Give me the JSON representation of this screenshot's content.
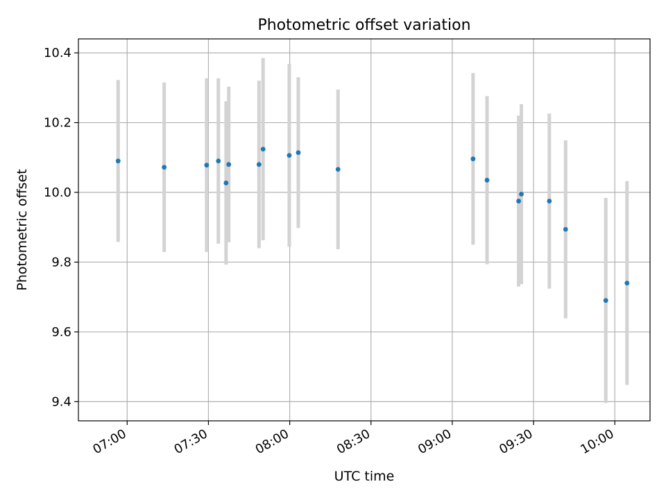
{
  "chart_data": {
    "type": "scatter",
    "title": "Photometric offset variation",
    "xlabel": "UTC time",
    "ylabel": "Photometric offset",
    "x_axis_type": "time",
    "xlim": [
      "06:42",
      "10:13"
    ],
    "ylim": [
      9.345,
      10.44
    ],
    "x_ticks": [
      "07:00",
      "07:30",
      "08:00",
      "08:30",
      "09:00",
      "09:30",
      "10:00"
    ],
    "y_ticks": [
      9.4,
      9.6,
      9.8,
      10.0,
      10.2,
      10.4
    ],
    "y_tick_labels": [
      "9.4",
      "9.6",
      "9.8",
      "10.0",
      "10.2",
      "10.4"
    ],
    "grid": true,
    "legend": "none",
    "colors": {
      "points": "#1f77b4",
      "errorbars": "#d3d3d3",
      "grid": "#b0b0b0"
    },
    "points": [
      {
        "time": "06:56:40",
        "y": 10.09,
        "yerr": 0.232
      },
      {
        "time": "07:13:40",
        "y": 10.072,
        "yerr": 0.243
      },
      {
        "time": "07:29:20",
        "y": 10.078,
        "yerr": 0.249
      },
      {
        "time": "07:33:40",
        "y": 10.09,
        "yerr": 0.237
      },
      {
        "time": "07:36:30",
        "y": 10.027,
        "yerr": 0.234
      },
      {
        "time": "07:37:30",
        "y": 10.08,
        "yerr": 0.223
      },
      {
        "time": "07:48:40",
        "y": 10.08,
        "yerr": 0.24
      },
      {
        "time": "07:50:10",
        "y": 10.124,
        "yerr": 0.261
      },
      {
        "time": "07:59:50",
        "y": 10.106,
        "yerr": 0.262
      },
      {
        "time": "08:03:10",
        "y": 10.114,
        "yerr": 0.216
      },
      {
        "time": "08:17:50",
        "y": 10.066,
        "yerr": 0.229
      },
      {
        "time": "09:07:40",
        "y": 10.096,
        "yerr": 0.246
      },
      {
        "time": "09:12:50",
        "y": 10.035,
        "yerr": 0.241
      },
      {
        "time": "09:24:30",
        "y": 9.975,
        "yerr": 0.245
      },
      {
        "time": "09:25:30",
        "y": 9.995,
        "yerr": 0.258
      },
      {
        "time": "09:35:50",
        "y": 9.975,
        "yerr": 0.251
      },
      {
        "time": "09:41:50",
        "y": 9.894,
        "yerr": 0.255
      },
      {
        "time": "09:56:40",
        "y": 9.69,
        "yerr": 0.294
      },
      {
        "time": "10:04:30",
        "y": 9.74,
        "yerr": 0.292
      }
    ]
  }
}
